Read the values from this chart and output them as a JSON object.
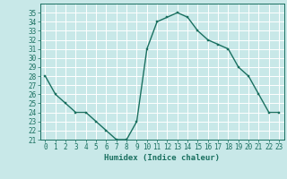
{
  "x": [
    0,
    1,
    2,
    3,
    4,
    5,
    6,
    7,
    8,
    9,
    10,
    11,
    12,
    13,
    14,
    15,
    16,
    17,
    18,
    19,
    20,
    21,
    22,
    23
  ],
  "y": [
    28,
    26,
    25,
    24,
    24,
    23,
    22,
    21,
    21,
    23,
    31,
    34,
    34.5,
    35,
    34.5,
    33,
    32,
    31.5,
    31,
    29,
    28,
    26,
    24,
    24
  ],
  "line_color": "#1a7060",
  "marker": "s",
  "marker_size": 2.0,
  "bg_color": "#c8e8e8",
  "grid_color": "#ffffff",
  "xlabel": "Humidex (Indice chaleur)",
  "xlim": [
    -0.5,
    23.5
  ],
  "ylim": [
    21,
    36
  ],
  "yticks": [
    21,
    22,
    23,
    24,
    25,
    26,
    27,
    28,
    29,
    30,
    31,
    32,
    33,
    34,
    35
  ],
  "xticks": [
    0,
    1,
    2,
    3,
    4,
    5,
    6,
    7,
    8,
    9,
    10,
    11,
    12,
    13,
    14,
    15,
    16,
    17,
    18,
    19,
    20,
    21,
    22,
    23
  ],
  "tick_label_fontsize": 5.5,
  "xlabel_fontsize": 6.5,
  "line_width": 1.0
}
